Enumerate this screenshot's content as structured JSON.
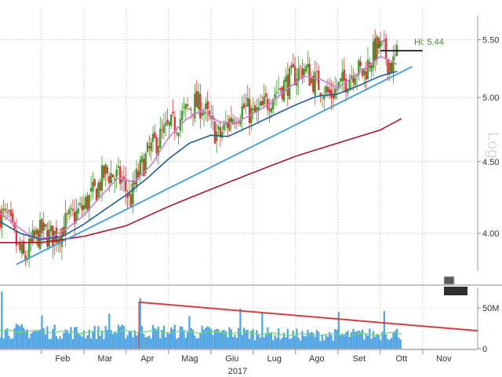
{
  "chart_data": {
    "type": "candlestick",
    "year_label": "2017",
    "scale_label": "Log",
    "hi_label": "Hi: 5.44",
    "hi_value": 5.44,
    "log_scale": true,
    "price_axis": {
      "ylim": [
        3.76,
        5.72
      ],
      "ticks": [
        "4.00",
        "4.50",
        "5.00",
        "5.50"
      ],
      "tick_values": [
        4.0,
        4.5,
        5.0,
        5.5
      ]
    },
    "volume_axis": {
      "ylim": [
        0,
        75
      ],
      "unit": "M",
      "ticks": [
        "0",
        "50M"
      ],
      "tick_values": [
        0,
        50
      ]
    },
    "months": [
      "Feb",
      "Mar",
      "Apr",
      "Mag",
      "Giu",
      "Lug",
      "Ago",
      "Set",
      "Ott",
      "Nov"
    ],
    "month_positions": [
      1.5,
      2.5,
      3.5,
      4.5,
      5.5,
      6.5,
      7.5,
      8.5,
      9.5,
      10.5
    ],
    "x_range": [
      0.02,
      11.3
    ],
    "close_anchors": [
      [
        0.0,
        4.13
      ],
      [
        0.2,
        4.1
      ],
      [
        0.45,
        3.9
      ],
      [
        0.6,
        3.83
      ],
      [
        0.8,
        3.95
      ],
      [
        1.0,
        4.01
      ],
      [
        1.2,
        3.98
      ],
      [
        1.4,
        4.0
      ],
      [
        1.6,
        4.08
      ],
      [
        1.8,
        4.12
      ],
      [
        2.0,
        4.18
      ],
      [
        2.3,
        4.3
      ],
      [
        2.5,
        4.42
      ],
      [
        2.7,
        4.4
      ],
      [
        2.9,
        4.36
      ],
      [
        3.1,
        4.22
      ],
      [
        3.25,
        4.38
      ],
      [
        3.5,
        4.55
      ],
      [
        3.7,
        4.65
      ],
      [
        4.0,
        4.75
      ],
      [
        4.2,
        4.8
      ],
      [
        4.4,
        4.88
      ],
      [
        4.6,
        4.95
      ],
      [
        4.8,
        4.93
      ],
      [
        5.0,
        4.78
      ],
      [
        5.2,
        4.68
      ],
      [
        5.4,
        4.8
      ],
      [
        5.6,
        4.88
      ],
      [
        5.8,
        4.92
      ],
      [
        6.0,
        4.85
      ],
      [
        6.2,
        4.9
      ],
      [
        6.4,
        5.0
      ],
      [
        6.6,
        5.08
      ],
      [
        6.8,
        5.12
      ],
      [
        7.0,
        5.2
      ],
      [
        7.2,
        5.25
      ],
      [
        7.4,
        5.15
      ],
      [
        7.6,
        5.1
      ],
      [
        7.8,
        5.02
      ],
      [
        8.0,
        5.08
      ],
      [
        8.2,
        5.15
      ],
      [
        8.4,
        5.25
      ],
      [
        8.6,
        5.2
      ],
      [
        8.8,
        5.35
      ],
      [
        8.95,
        5.44
      ],
      [
        9.1,
        5.38
      ],
      [
        9.2,
        5.3
      ],
      [
        9.3,
        5.28
      ],
      [
        9.4,
        5.36
      ]
    ],
    "series": [
      {
        "color": "#e0363a",
        "kind": "down_candles"
      },
      {
        "color": "#3f9b2f",
        "kind": "up_candles"
      },
      {
        "color": "#d27ad8",
        "kind": "moving_average",
        "values": [
          [
            0.0,
            4.14
          ],
          [
            0.4,
            4.05
          ],
          [
            0.8,
            3.97
          ],
          [
            1.2,
            3.97
          ],
          [
            1.6,
            4.03
          ],
          [
            2.0,
            4.12
          ],
          [
            2.4,
            4.25
          ],
          [
            2.8,
            4.38
          ],
          [
            3.2,
            4.35
          ],
          [
            3.6,
            4.48
          ],
          [
            4.0,
            4.68
          ],
          [
            4.4,
            4.82
          ],
          [
            4.8,
            4.9
          ],
          [
            5.2,
            4.8
          ],
          [
            5.6,
            4.8
          ],
          [
            6.0,
            4.87
          ],
          [
            6.4,
            4.95
          ],
          [
            6.8,
            5.07
          ],
          [
            7.2,
            5.18
          ],
          [
            7.6,
            5.15
          ],
          [
            8.0,
            5.08
          ],
          [
            8.4,
            5.18
          ],
          [
            8.8,
            5.29
          ],
          [
            9.0,
            5.35
          ],
          [
            9.2,
            5.32
          ],
          [
            9.4,
            5.28
          ]
        ]
      },
      {
        "color": "#1f5e9a",
        "kind": "moving_average",
        "values": [
          [
            0.0,
            4.08
          ],
          [
            0.5,
            4.0
          ],
          [
            1.0,
            3.96
          ],
          [
            1.5,
            3.98
          ],
          [
            2.0,
            4.06
          ],
          [
            2.5,
            4.16
          ],
          [
            3.0,
            4.26
          ],
          [
            3.5,
            4.38
          ],
          [
            4.0,
            4.52
          ],
          [
            4.5,
            4.64
          ],
          [
            5.0,
            4.7
          ],
          [
            5.4,
            4.69
          ],
          [
            6.0,
            4.78
          ],
          [
            6.5,
            4.86
          ],
          [
            7.0,
            4.94
          ],
          [
            7.5,
            5.01
          ],
          [
            8.0,
            5.03
          ],
          [
            8.5,
            5.1
          ],
          [
            9.0,
            5.18
          ],
          [
            9.4,
            5.22
          ]
        ]
      },
      {
        "color": "#b0152c",
        "kind": "moving_average",
        "values": [
          [
            0.0,
            3.94
          ],
          [
            1.0,
            3.94
          ],
          [
            2.0,
            3.98
          ],
          [
            3.0,
            4.05
          ],
          [
            4.0,
            4.18
          ],
          [
            5.0,
            4.3
          ],
          [
            6.0,
            4.42
          ],
          [
            7.0,
            4.54
          ],
          [
            8.0,
            4.64
          ],
          [
            9.0,
            4.74
          ],
          [
            9.5,
            4.83
          ]
        ]
      },
      {
        "color": "#3b9ee3",
        "kind": "trendline",
        "values": [
          [
            0.4,
            3.8
          ],
          [
            9.75,
            5.26
          ]
        ]
      },
      {
        "color": "#000000",
        "kind": "level",
        "values": [
          [
            9.0,
            5.4
          ],
          [
            10.0,
            5.4
          ]
        ]
      }
    ],
    "volume_bars": {
      "color": "#4ea3e3",
      "range": [
        0.0,
        9.5
      ],
      "baseline": 22
    },
    "volume_average": {
      "color": "#6ddc6a",
      "values": [
        [
          0.0,
          22
        ],
        [
          1.0,
          21
        ],
        [
          2.0,
          20
        ],
        [
          3.0,
          21
        ],
        [
          4.0,
          21
        ],
        [
          5.0,
          20
        ],
        [
          6.0,
          19
        ],
        [
          7.0,
          17
        ],
        [
          8.0,
          17
        ],
        [
          9.0,
          18
        ],
        [
          9.5,
          19
        ]
      ]
    },
    "volume_trendline": {
      "color": "#e03a3a",
      "values": [
        [
          3.3,
          57
        ],
        [
          11.3,
          22
        ]
      ]
    }
  }
}
